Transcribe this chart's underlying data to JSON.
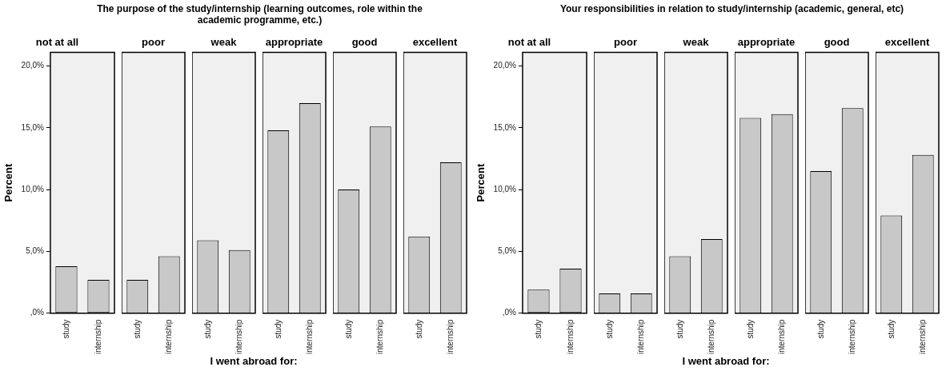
{
  "chart_data": [
    {
      "type": "bar",
      "subtitle": "The purpose of the study/internship (learning outcomes, role within the academic programme, etc.)",
      "title": "not at all",
      "ylabel": "Percent",
      "categories": [
        "study",
        "internship"
      ],
      "values": [
        3.8,
        2.7
      ],
      "color": "#c8c8c8",
      "ylim": [
        0,
        21.1
      ],
      "yticks": [
        {
          "value": 0,
          "label": ",0%"
        },
        {
          "value": 5,
          "label": "5,0%"
        },
        {
          "value": 10,
          "label": "10,0%"
        },
        {
          "value": 15,
          "label": "15,0%"
        },
        {
          "value": 20,
          "label": "20,0%"
        }
      ],
      "grid": false
    },
    {
      "type": "bar",
      "title": "poor",
      "categories": [
        "study",
        "internship"
      ],
      "values": [
        2.7,
        4.6
      ],
      "color": "#c8c8c8",
      "ylim": [
        0,
        21.1
      ],
      "tick_labels": "x",
      "grid": false
    },
    {
      "type": "bar",
      "title": "weak",
      "xlabel": "I went abroad for:",
      "categories": [
        "study",
        "internship"
      ],
      "values": [
        5.9,
        5.1
      ],
      "color": "#c8c8c8",
      "ylim": [
        0,
        21.1
      ],
      "tick_labels": "x",
      "grid": false
    },
    {
      "type": "bar",
      "title": "appropriate",
      "categories": [
        "study",
        "internship"
      ],
      "values": [
        14.8,
        17.0
      ],
      "color": "#c8c8c8",
      "ylim": [
        0,
        21.1
      ],
      "tick_labels": "x",
      "grid": false
    },
    {
      "type": "bar",
      "title": "good",
      "categories": [
        "study",
        "internship"
      ],
      "values": [
        10.0,
        15.1
      ],
      "color": "#c8c8c8",
      "ylim": [
        0,
        21.1
      ],
      "tick_labels": "x",
      "grid": false
    },
    {
      "type": "bar",
      "title": "excellent",
      "categories": [
        "study",
        "internship"
      ],
      "values": [
        6.2,
        12.2
      ],
      "color": "#c8c8c8",
      "ylim": [
        0,
        21.1
      ],
      "tick_labels": "x",
      "grid": false
    },
    {
      "type": "bar",
      "subtitle": "Your responsibilities in relation to study/internship (academic, general, etc)",
      "title": "not at all",
      "ylabel": "Percent",
      "categories": [
        "study",
        "internship"
      ],
      "values": [
        1.9,
        3.6
      ],
      "color": "#c8c8c8",
      "ylim": [
        0,
        21.1
      ],
      "yticks": [
        {
          "value": 0,
          "label": ",0%"
        },
        {
          "value": 5,
          "label": "5,0%"
        },
        {
          "value": 10,
          "label": "10,0%"
        },
        {
          "value": 15,
          "label": "15,0%"
        },
        {
          "value": 20,
          "label": "20,0%"
        }
      ],
      "grid": false
    },
    {
      "type": "bar",
      "title": "poor",
      "categories": [
        "study",
        "internship"
      ],
      "values": [
        1.6,
        1.6
      ],
      "color": "#c8c8c8",
      "ylim": [
        0,
        21.1
      ],
      "tick_labels": "x",
      "grid": false
    },
    {
      "type": "bar",
      "title": "weak",
      "xlabel": "I went abroad for:",
      "categories": [
        "study",
        "internship"
      ],
      "values": [
        4.6,
        6.0
      ],
      "color": "#c8c8c8",
      "ylim": [
        0,
        21.1
      ],
      "tick_labels": "x",
      "grid": false
    },
    {
      "type": "bar",
      "title": "appropriate",
      "categories": [
        "study",
        "internship"
      ],
      "values": [
        15.8,
        16.1
      ],
      "color": "#c8c8c8",
      "ylim": [
        0,
        21.1
      ],
      "tick_labels": "x",
      "grid": false
    },
    {
      "type": "bar",
      "title": "good",
      "categories": [
        "study",
        "internship"
      ],
      "values": [
        11.5,
        16.6
      ],
      "color": "#c8c8c8",
      "ylim": [
        0,
        21.1
      ],
      "tick_labels": "x",
      "grid": false
    },
    {
      "type": "bar",
      "title": "excellent",
      "categories": [
        "study",
        "internship"
      ],
      "values": [
        7.9,
        12.8
      ],
      "color": "#c8c8c8",
      "ylim": [
        0,
        21.1
      ],
      "tick_labels": "x",
      "grid": false
    }
  ]
}
